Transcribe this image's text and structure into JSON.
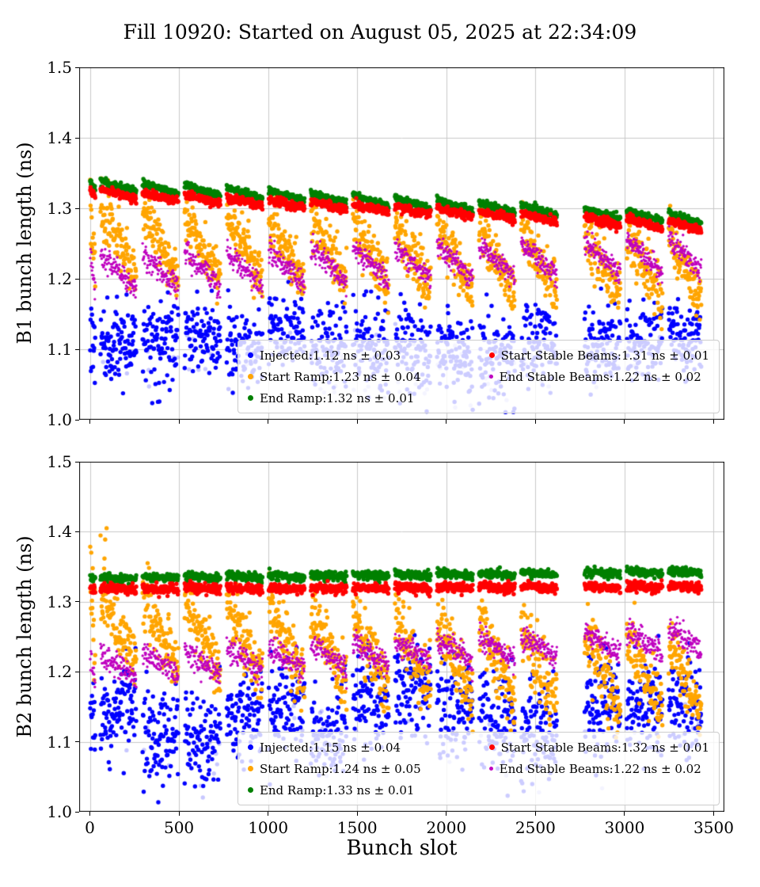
{
  "title": "Fill 10920: Started on August 05, 2025 at 22:34:09",
  "xlabel": "Bunch slot",
  "slot_trains": {
    "first": [
      2,
      30
    ],
    "start": 60,
    "train_len": 200,
    "gap": 36,
    "trains_before_big_gap": 11,
    "big_gap_extra": 120,
    "max_slot": 3430,
    "slot_step": 2
  },
  "chart_data": [
    {
      "type": "scatter",
      "name": "B1",
      "title": "",
      "ylabel": "B1 bunch length (ns)",
      "xlabel": "",
      "xlim": [
        0,
        3500
      ],
      "xlim_display": [
        -60,
        3560
      ],
      "ylim": [
        1.0,
        1.5
      ],
      "xticks": [
        0,
        500,
        1000,
        1500,
        2000,
        2500,
        3000,
        3500
      ],
      "xtick_labels": [
        "0",
        "500",
        "1000",
        "1500",
        "2000",
        "2500",
        "3000",
        "3500"
      ],
      "show_xtick_labels": false,
      "yticks": [
        1.0,
        1.1,
        1.2,
        1.3,
        1.4,
        1.5
      ],
      "ytick_labels": [
        "1.0",
        "1.1",
        "1.2",
        "1.3",
        "1.4",
        "1.5"
      ],
      "grid": true,
      "legend_location": "lower right",
      "series": [
        {
          "name": "Injected",
          "label": "Injected:1.12 ns ± 0.03",
          "mean": 1.12,
          "std": 0.03,
          "unit": "ns",
          "color": "#0000ff",
          "radius": 2.7,
          "legend_marker_px": 7,
          "gen": {
            "base": 1.115,
            "slope": -3e-06,
            "saw": 0,
            "noise": 0.03,
            "train_jitter": 0.01,
            "faded_frac": 0.05,
            "faded_alpha": 0.22,
            "faded_drop": 0.05,
            "clip": [
              1.003,
              1.2
            ]
          }
        },
        {
          "name": "Start Ramp",
          "label": "Start Ramp:1.23 ns ± 0.04",
          "mean": 1.23,
          "std": 0.04,
          "unit": "ns",
          "color": "#ffa500",
          "radius": 2.7,
          "legend_marker_px": 7,
          "gen": {
            "base": 1.255,
            "slope": -1.2e-05,
            "saw": 0.09,
            "noise": 0.018,
            "high_x": 200,
            "high_amt": 0.06,
            "high_frac": 0.12,
            "clip": [
              1.12,
              1.4
            ]
          }
        },
        {
          "name": "End Ramp",
          "label": "End Ramp:1.32 ns ± 0.01",
          "mean": 1.32,
          "std": 0.01,
          "unit": "ns",
          "color": "#008000",
          "radius": 2.7,
          "legend_marker_px": 7,
          "gen": {
            "base": 1.334,
            "slope": -1.45e-05,
            "saw": 0.012,
            "noise": 0.0025,
            "clip": [
              1.2,
              1.4
            ]
          }
        },
        {
          "name": "Start Stable Beams",
          "label": "Start Stable Beams:1.31 ns ± 0.01",
          "mean": 1.31,
          "std": 0.01,
          "unit": "ns",
          "color": "#ff0000",
          "radius": 2.7,
          "legend_marker_px": 7,
          "gen": {
            "base": 1.322,
            "slope": -1.4e-05,
            "saw": 0.01,
            "noise": 0.003,
            "clip": [
              1.2,
              1.4
            ]
          }
        },
        {
          "name": "End Stable Beams",
          "label": "End Stable Beams:1.22 ns ± 0.02",
          "mean": 1.22,
          "std": 0.02,
          "unit": "ns",
          "color": "#bf00bf",
          "radius": 1.7,
          "legend_marker_px": 5,
          "gen": {
            "base": 1.208,
            "slope": 8e-06,
            "saw": 0.05,
            "noise": 0.008,
            "clip": [
              1.1,
              1.3
            ]
          }
        }
      ]
    },
    {
      "type": "scatter",
      "name": "B2",
      "title": "",
      "ylabel": "B2 bunch length (ns)",
      "xlabel": "Bunch slot",
      "xlim": [
        0,
        3500
      ],
      "xlim_display": [
        -60,
        3560
      ],
      "ylim": [
        1.0,
        1.5
      ],
      "xticks": [
        0,
        500,
        1000,
        1500,
        2000,
        2500,
        3000,
        3500
      ],
      "xtick_labels": [
        "0",
        "500",
        "1000",
        "1500",
        "2000",
        "2500",
        "3000",
        "3500"
      ],
      "show_xtick_labels": true,
      "yticks": [
        1.0,
        1.1,
        1.2,
        1.3,
        1.4,
        1.5
      ],
      "ytick_labels": [
        "1.0",
        "1.1",
        "1.2",
        "1.3",
        "1.4",
        "1.5"
      ],
      "grid": true,
      "legend_location": "lower right",
      "series": [
        {
          "name": "Injected",
          "label": "Injected:1.15 ns ± 0.04",
          "mean": 1.15,
          "std": 0.04,
          "unit": "ns",
          "color": "#0000ff",
          "radius": 2.7,
          "legend_marker_px": 7,
          "gen": {
            "base": 1.13,
            "slope": 8e-06,
            "saw": 0,
            "noise": 0.035,
            "train_jitter": 0.015,
            "faded_frac": 0.05,
            "faded_alpha": 0.22,
            "faded_drop": 0.05,
            "clip": [
              1.003,
              1.27
            ]
          }
        },
        {
          "name": "Start Ramp",
          "label": "Start Ramp:1.24 ns ± 0.05",
          "mean": 1.24,
          "std": 0.05,
          "unit": "ns",
          "color": "#ffa500",
          "radius": 2.7,
          "legend_marker_px": 7,
          "gen": {
            "base": 1.265,
            "slope": -2.2e-05,
            "saw": 0.1,
            "noise": 0.022,
            "high_x": 120,
            "high_amt": 0.08,
            "high_frac": 0.25,
            "clip": [
              1.1,
              1.43
            ]
          }
        },
        {
          "name": "End Ramp",
          "label": "End Ramp:1.33 ns ± 0.01",
          "mean": 1.33,
          "std": 0.01,
          "unit": "ns",
          "color": "#008000",
          "radius": 2.7,
          "legend_marker_px": 7,
          "gen": {
            "base": 1.333,
            "slope": 3e-06,
            "saw": 0.004,
            "noise": 0.003,
            "clip": [
              1.25,
              1.4
            ]
          }
        },
        {
          "name": "Start Stable Beams",
          "label": "Start Stable Beams:1.32 ns ± 0.01",
          "mean": 1.32,
          "std": 0.01,
          "unit": "ns",
          "color": "#ff0000",
          "radius": 2.7,
          "legend_marker_px": 7,
          "gen": {
            "base": 1.318,
            "slope": 1e-06,
            "saw": 0.003,
            "noise": 0.0035,
            "clip": [
              1.25,
              1.4
            ]
          }
        },
        {
          "name": "End Stable Beams",
          "label": "End Stable Beams:1.22 ns ± 0.02",
          "mean": 1.22,
          "std": 0.02,
          "unit": "ns",
          "color": "#bf00bf",
          "radius": 1.7,
          "legend_marker_px": 5,
          "gen": {
            "base": 1.206,
            "slope": 1.2e-05,
            "saw": 0.035,
            "noise": 0.009,
            "clip": [
              1.1,
              1.3
            ]
          }
        }
      ]
    }
  ]
}
